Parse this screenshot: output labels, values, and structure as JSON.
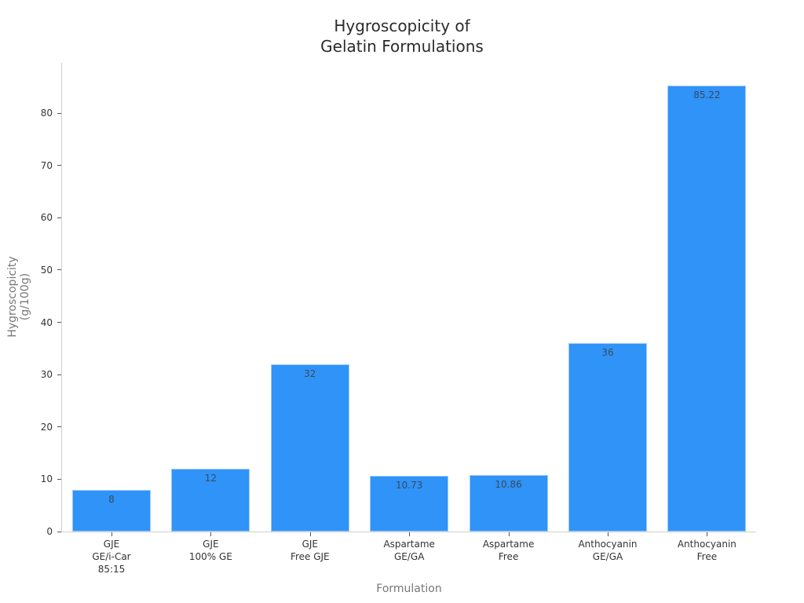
{
  "chart_data": {
    "type": "bar",
    "title": "Hygroscopicity of Gelatin Formulations",
    "title_lines": [
      "Hygroscopicity of",
      "Gelatin Formulations"
    ],
    "xlabel": "Formulation",
    "ylabel": "Hygroscopicity (g/100g)",
    "ylabel_lines": [
      "Hygroscopicity",
      "(g/100g)"
    ],
    "categories": [
      "GJE GE/i-Car 85:15",
      "GJE 100% GE",
      "GJE Free GJE",
      "Aspartame GE/GA",
      "Aspartame Free",
      "Anthocyanin GE/GA",
      "Anthocyanin Free"
    ],
    "category_lines": [
      [
        "GJE",
        "GE/i-Car",
        "85:15"
      ],
      [
        "GJE",
        "100% GE"
      ],
      [
        "GJE",
        "Free GJE"
      ],
      [
        "Aspartame",
        "GE/GA"
      ],
      [
        "Aspartame",
        "Free"
      ],
      [
        "Anthocyanin",
        "GE/GA"
      ],
      [
        "Anthocyanin",
        "Free"
      ]
    ],
    "values": [
      8,
      12,
      32,
      10.73,
      10.86,
      36,
      85.22
    ],
    "data_labels": [
      "8",
      "12",
      "32",
      "10.73",
      "10.86",
      "36",
      "85.22"
    ],
    "yticks": [
      0,
      10,
      20,
      30,
      40,
      50,
      60,
      70,
      80
    ],
    "ylim": [
      0,
      89.6
    ],
    "grid": false,
    "legend": null,
    "bar_color": "#2f93f8"
  }
}
